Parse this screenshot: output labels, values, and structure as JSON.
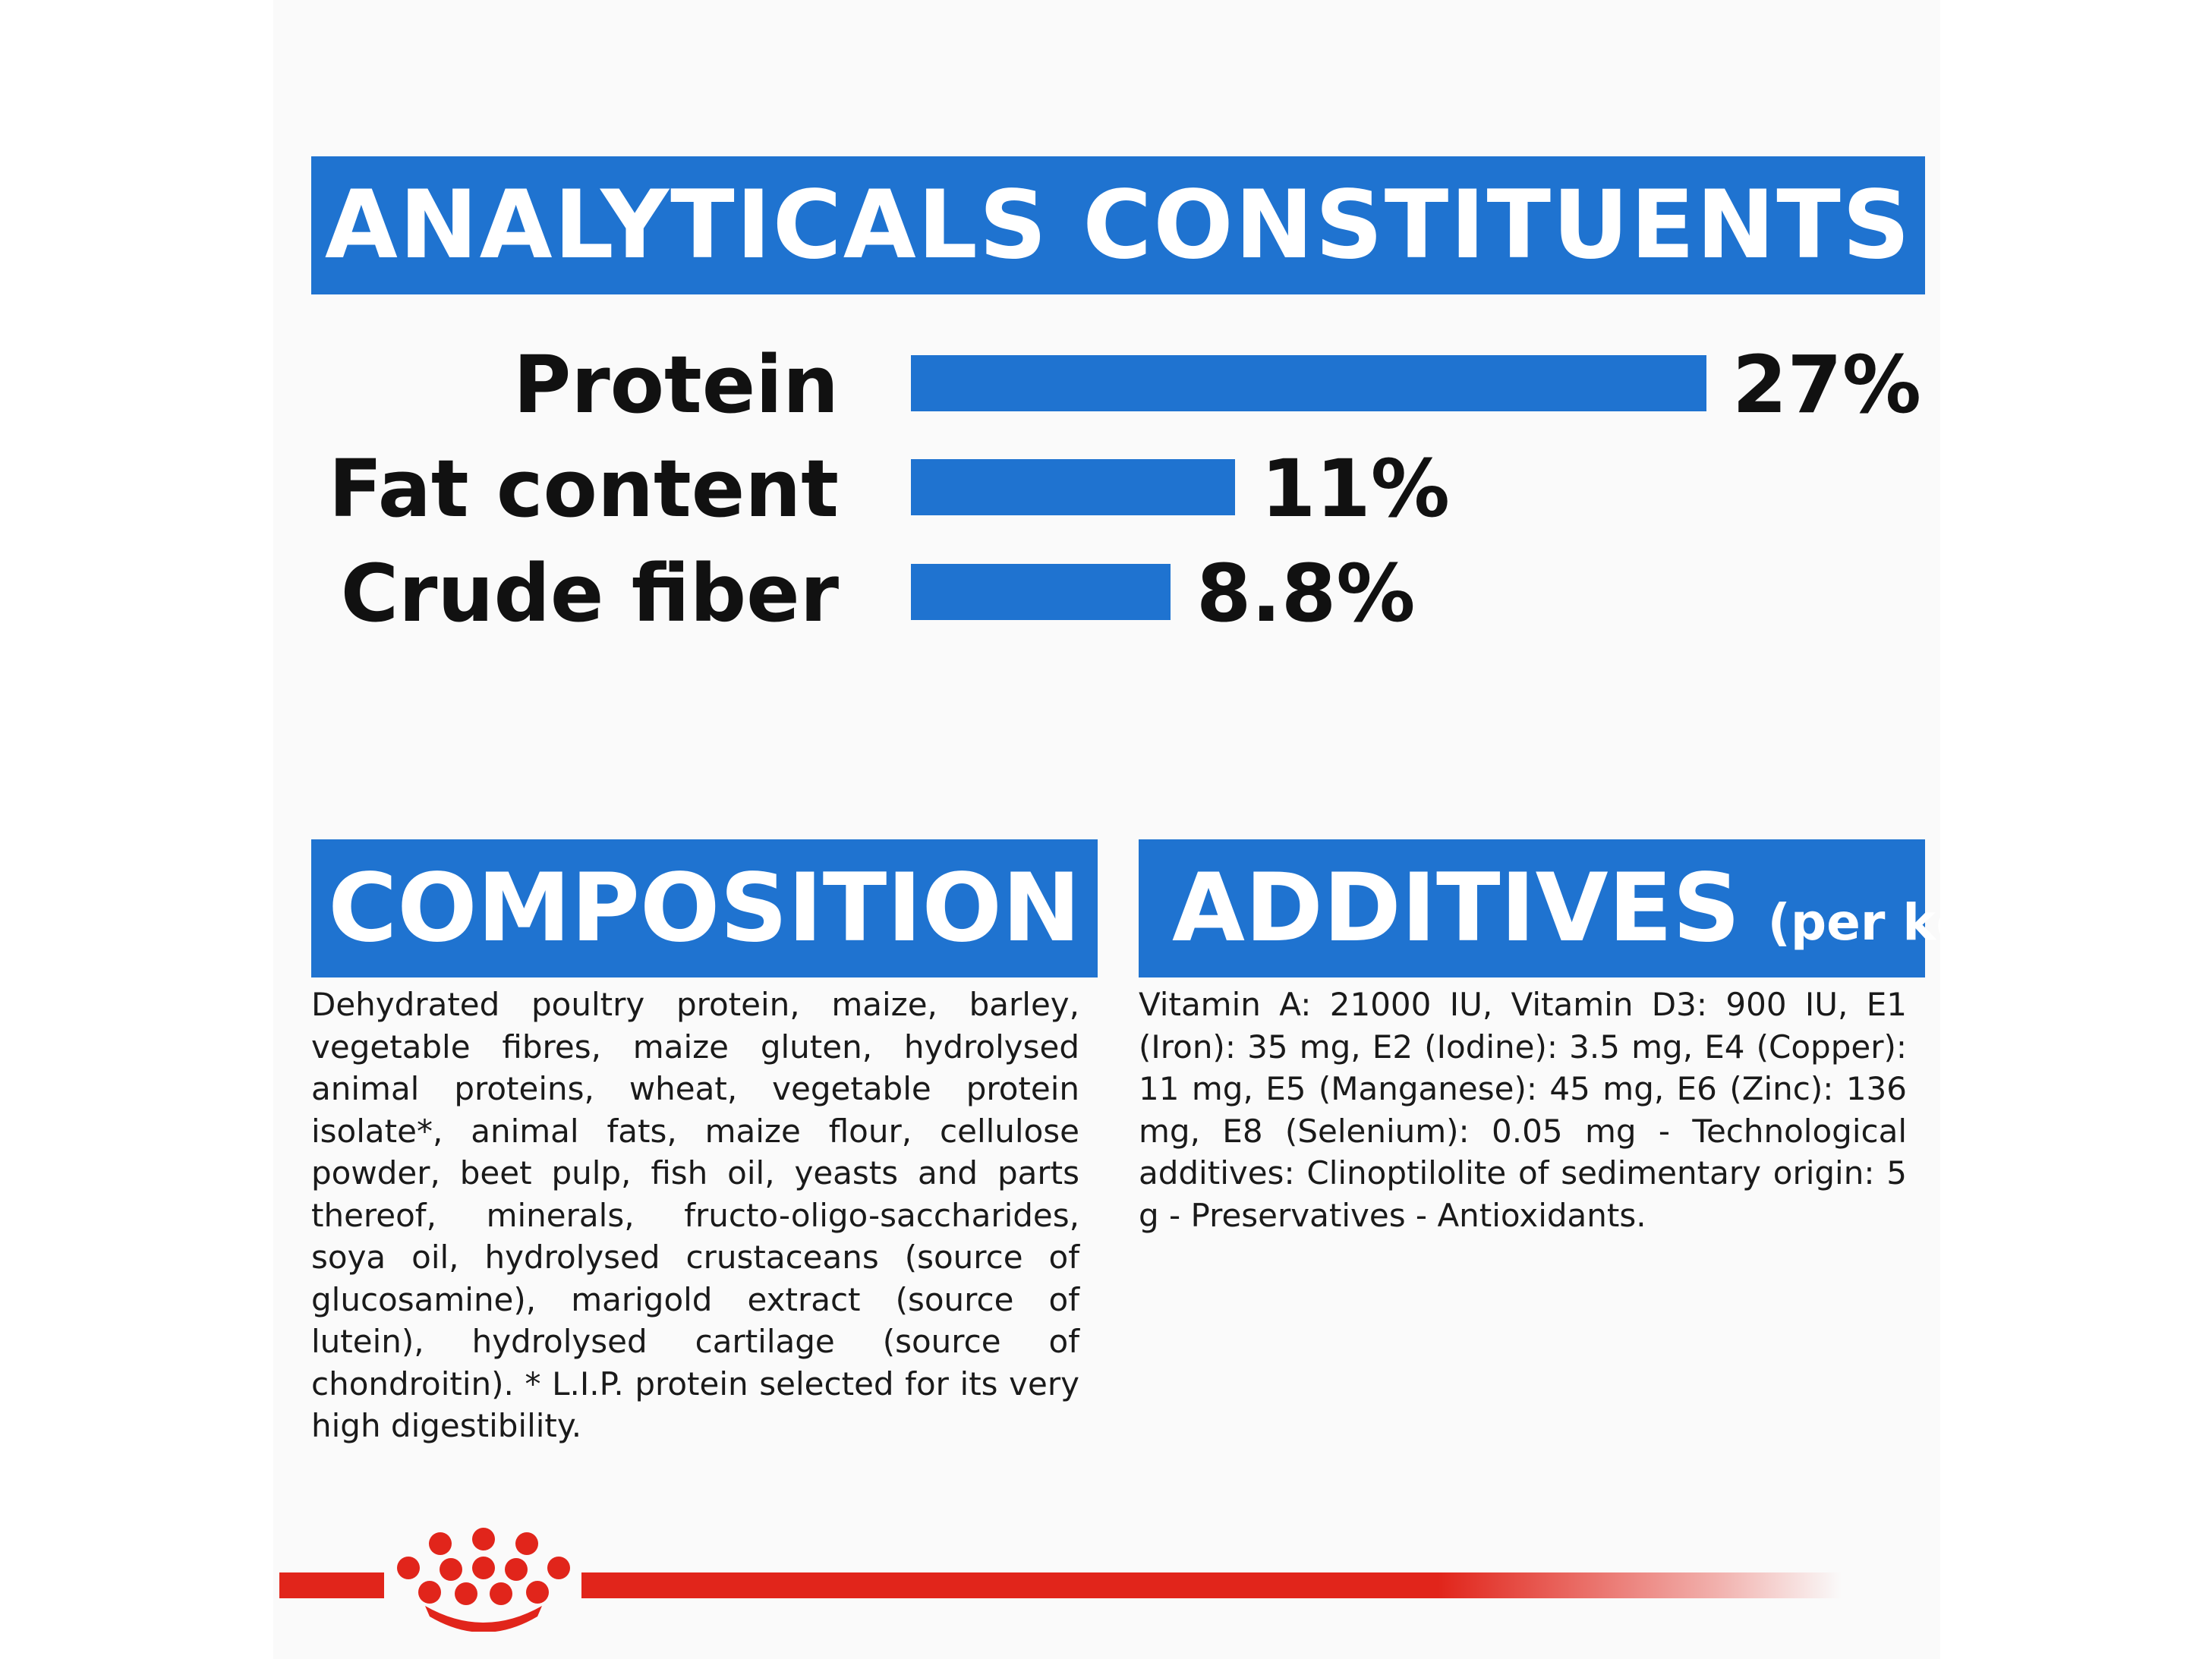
{
  "analyticals": {
    "title": "ANALYTICALS CONSTITUENTS",
    "rows": [
      {
        "label": "Protein",
        "value_text": "27%",
        "value": 27
      },
      {
        "label": "Fat content",
        "value_text": "11%",
        "value": 11
      },
      {
        "label": "Crude fiber",
        "value_text": "8.8%",
        "value": 8.8
      }
    ]
  },
  "composition": {
    "title": "COMPOSITION",
    "text": "Dehydrated poultry protein, maize, barley, vegetable fibres, maize gluten, hydrolysed animal proteins, wheat, vegetable protein isolate*, animal fats, maize flour, cellulose powder, beet pulp, fish oil, yeasts and parts thereof, minerals, fructo-oligo-saccharides, soya oil, hydrolysed crustaceans (source of glucosamine), marigold extract (source of lutein), hydrolysed cartilage (source of chondroitin). * L.I.P. protein selected for its very high digestibility."
  },
  "additives": {
    "title": "ADDITIVES",
    "unit": "(per kg)",
    "text": "Vitamin A: 21000 IU, Vitamin D3: 900 IU, E1 (Iron): 35 mg, E2 (Iodine): 3.5 mg, E4 (Copper): 11 mg, E5 (Manganese): 45 mg, E6 (Zinc): 136 mg, E8 (Selenium): 0.05 mg - Technological additives: Clinoptilolite of sedimentary origin: 5 g - Preservatives - Antioxidants."
  },
  "colors": {
    "accent_blue": "#1f73d0",
    "brand_red": "#e1251b"
  },
  "logo": {
    "icon": "royal-canin-crown-icon"
  }
}
